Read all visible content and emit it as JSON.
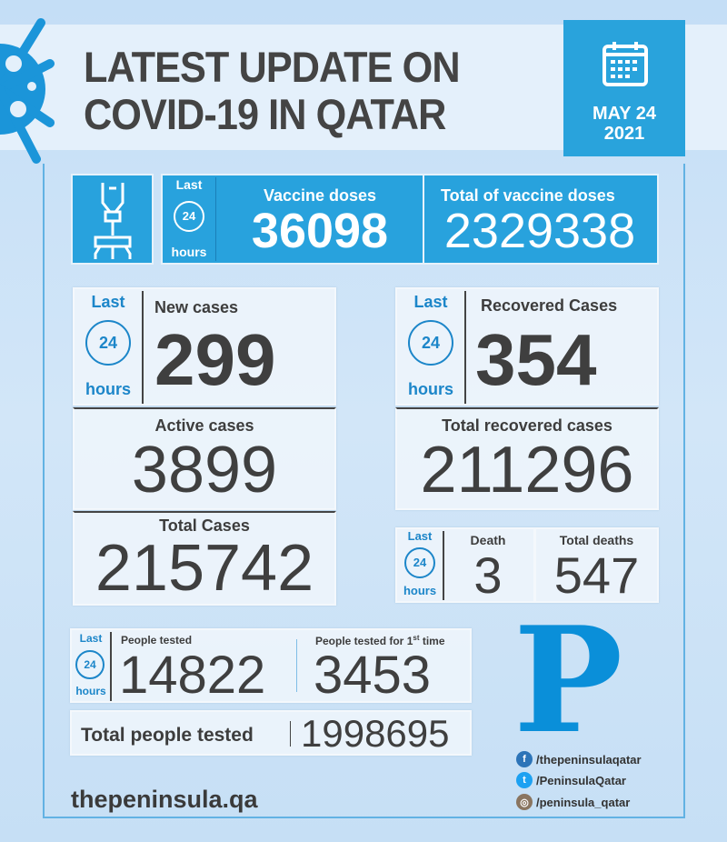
{
  "header": {
    "title_line1": "LATEST UPDATE ON",
    "title_line2": "COVID-19 IN QATAR",
    "date_line1": "MAY 24",
    "date_line2": "2021"
  },
  "last24": {
    "last": "Last",
    "num": "24",
    "hours": "hours"
  },
  "vaccine": {
    "doses_label": "Vaccine doses",
    "doses": "36098",
    "total_label": "Total of vaccine doses",
    "total": "2329338"
  },
  "cases": {
    "new_label": "New cases",
    "new": "299",
    "active_label": "Active cases",
    "active": "3899",
    "total_label": "Total Cases",
    "total": "215742"
  },
  "recovered": {
    "label": "Recovered Cases",
    "value": "354",
    "total_label": "Total recovered cases",
    "total": "211296"
  },
  "deaths": {
    "label": "Death",
    "value": "3",
    "total_label": "Total deaths",
    "total": "547"
  },
  "tests": {
    "tested_label": "People tested",
    "tested": "14822",
    "first_label": "People tested for 1",
    "first_sup": "st",
    "first_suffix": " time",
    "first": "3453",
    "total_label": "Total people tested",
    "total": "1998695"
  },
  "footer": {
    "site": "thepeninsula.qa",
    "logo": "P",
    "facebook": "/thepeninsulaqatar",
    "twitter": "/PeninsulaQatar",
    "instagram": "/peninsula_qatar"
  },
  "colors": {
    "accent": "#28a2dd",
    "logo": "#0a8fd9",
    "text": "#3f3f3f"
  }
}
